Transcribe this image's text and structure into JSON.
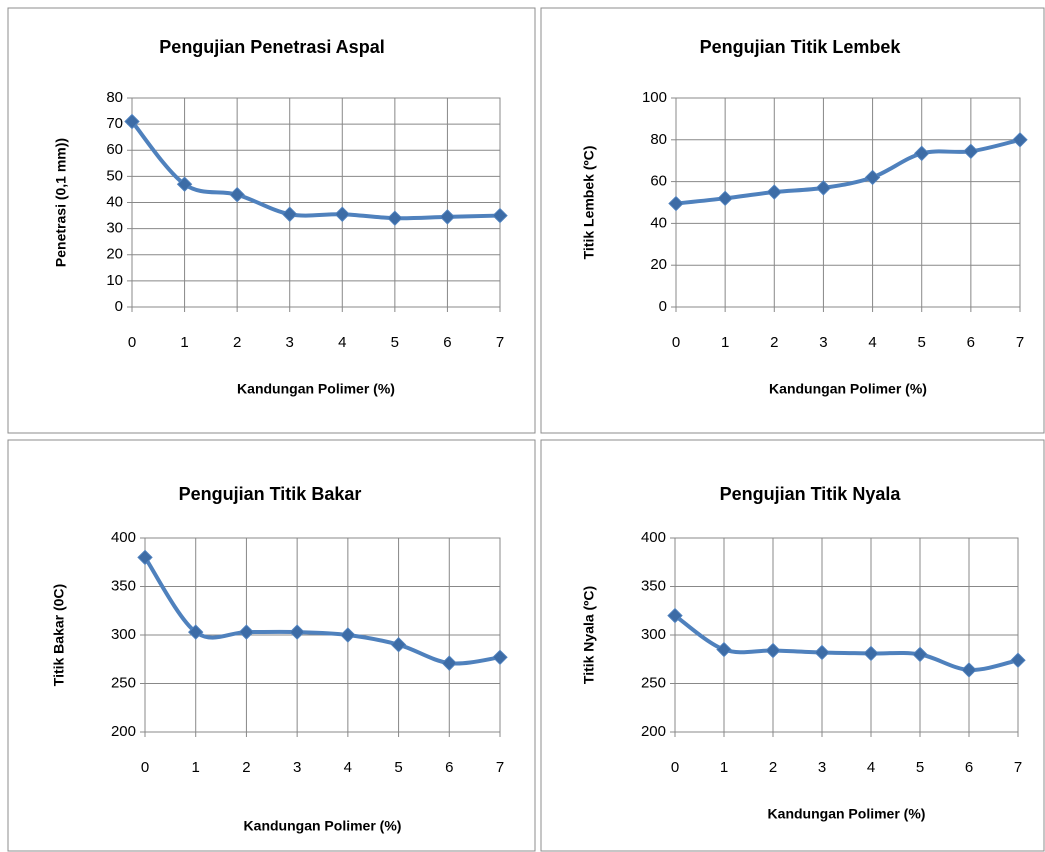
{
  "chart_data": [
    {
      "type": "line",
      "title": "Pengujian Penetrasi Aspal",
      "x_label": "Kandungan Polimer (%)",
      "y_label": "Penetrasi (0,1 mm))",
      "x": [
        0,
        1,
        2,
        3,
        4,
        5,
        6,
        7
      ],
      "xlim": [
        0,
        7
      ],
      "xticks": [
        0,
        1,
        2,
        3,
        4,
        5,
        6,
        7
      ],
      "values": [
        71,
        47,
        43,
        35.5,
        35.5,
        34,
        34.5,
        35
      ],
      "color": "#4f81bd",
      "marker_color": "#3d6ca6",
      "ylim": [
        0,
        80
      ],
      "yticks": [
        0,
        10,
        20,
        30,
        40,
        50,
        60,
        70,
        80
      ],
      "grid": true
    },
    {
      "type": "line",
      "title": "Pengujian Titik Lembek",
      "x_label": "Kandungan Polimer (%)",
      "y_label": "Titik Lembek (ºC)",
      "x": [
        0,
        1,
        2,
        3,
        4,
        5,
        6,
        7
      ],
      "xlim": [
        0,
        7
      ],
      "xticks": [
        0,
        1,
        2,
        3,
        4,
        5,
        6,
        7
      ],
      "values": [
        49.5,
        52,
        55,
        57,
        62,
        73.5,
        74.5,
        80
      ],
      "color": "#4f81bd",
      "marker_color": "#3d6ca6",
      "ylim": [
        0,
        100
      ],
      "yticks": [
        0,
        20,
        40,
        60,
        80,
        100
      ],
      "grid": true
    },
    {
      "type": "line",
      "title": "Pengujian Titik Bakar",
      "x_label": "Kandungan Polimer (%)",
      "y_label": "Titik Bakar (0C)",
      "x": [
        0,
        1,
        2,
        3,
        4,
        5,
        6,
        7
      ],
      "xlim": [
        0,
        7
      ],
      "xticks": [
        0,
        1,
        2,
        3,
        4,
        5,
        6,
        7
      ],
      "values": [
        380,
        303,
        303,
        303,
        300,
        290,
        271,
        277
      ],
      "color": "#4f81bd",
      "marker_color": "#3d6ca6",
      "ylim": [
        200,
        400
      ],
      "yticks": [
        200,
        250,
        300,
        350,
        400
      ],
      "grid": true
    },
    {
      "type": "line",
      "title": "Pengujian Titik Nyala",
      "x_label": "Kandungan Polimer (%)",
      "y_label": "Titik Nyala (ºC)",
      "x": [
        0,
        1,
        2,
        3,
        4,
        5,
        6,
        7
      ],
      "xlim": [
        0,
        7
      ],
      "xticks": [
        0,
        1,
        2,
        3,
        4,
        5,
        6,
        7
      ],
      "values": [
        320,
        285,
        284,
        282,
        281,
        280,
        264,
        274
      ],
      "color": "#4f81bd",
      "marker_color": "#3d6ca6",
      "ylim": [
        200,
        400
      ],
      "yticks": [
        200,
        250,
        300,
        350,
        400
      ],
      "grid": true
    }
  ]
}
